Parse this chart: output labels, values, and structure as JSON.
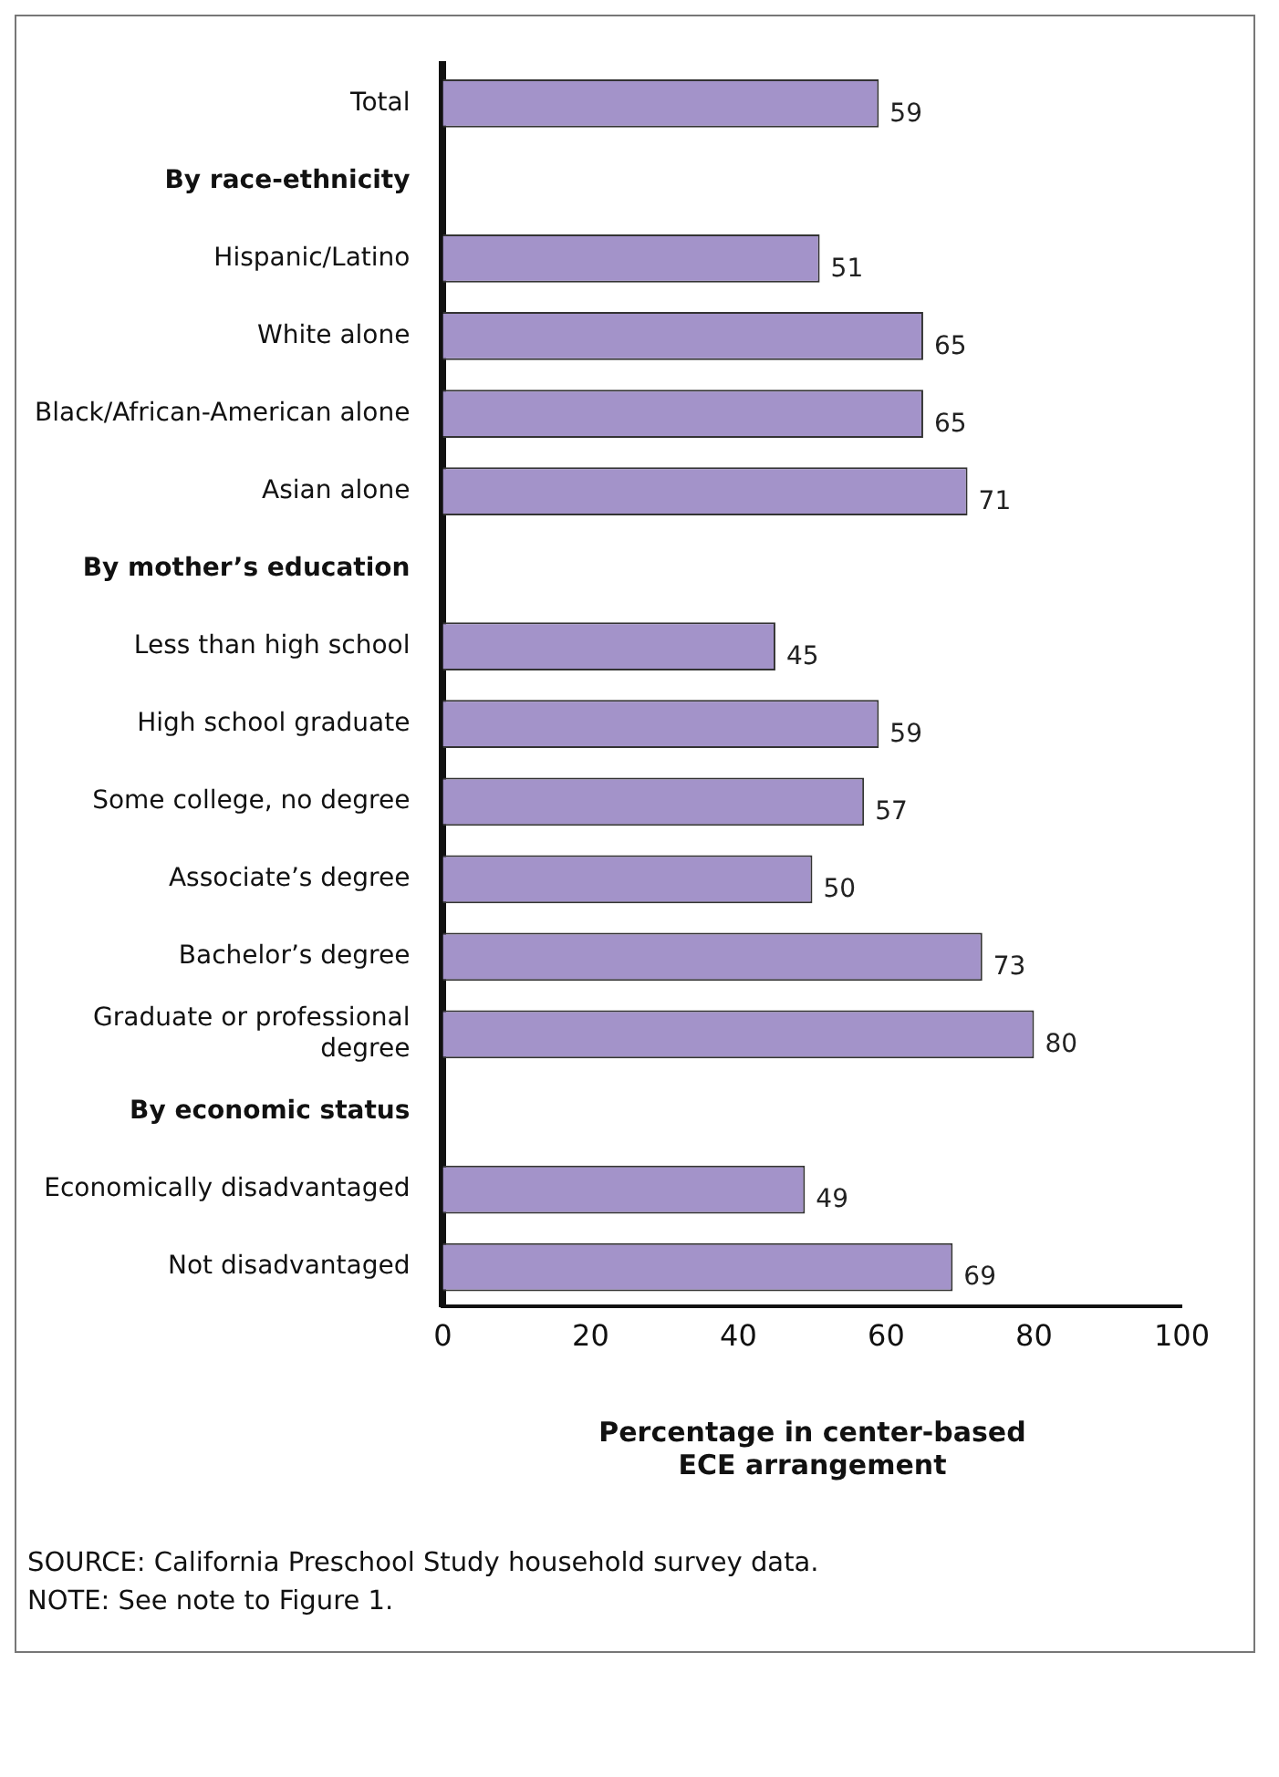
{
  "chart_data": {
    "type": "bar",
    "orientation": "horizontal",
    "categories": [
      "Total",
      "By race-ethnicity",
      "Hispanic/Latino",
      "White alone",
      "Black/African-American alone",
      "Asian alone",
      "By mother’s education",
      "Less than high school",
      "High school graduate",
      "Some college, no degree",
      "Associate’s degree",
      "Bachelor’s degree",
      "Graduate or professional degree",
      "By economic status",
      "Economically disadvantaged",
      "Not disadvantaged"
    ],
    "values": [
      59,
      null,
      51,
      65,
      65,
      71,
      null,
      45,
      59,
      57,
      50,
      73,
      80,
      null,
      49,
      69
    ],
    "color": "#a393c9",
    "xlim": [
      0,
      100
    ],
    "xticks": [
      0,
      20,
      40,
      60,
      80,
      100
    ],
    "xlabel": "Percentage in center-based ECE arrangement",
    "data_labels": true,
    "grid": false,
    "legend": false,
    "annotations": [
      "SOURCE: California Preschool Study household survey data.",
      "NOTE: See note to Figure 1."
    ]
  }
}
